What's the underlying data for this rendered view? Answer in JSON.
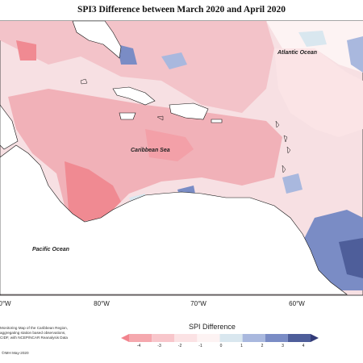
{
  "title": "SPI3 Difference between March 2020 and April 2020",
  "labels": {
    "atlantic": "Atlantic Ocean",
    "caribbean": "Caribbean Sea",
    "pacific": "Pacific Ocean"
  },
  "longitude_ticks": [
    "0°W",
    "80°W",
    "70°W",
    "60°W"
  ],
  "notes": [
    "Monitoring Map of the Caribbean Region,",
    "aggregating station based observations,",
    "CIDF, with NCEP/NCAR Reanalysis Data"
  ],
  "copyright": "©IMH May-2020",
  "legend": {
    "title": "SPI Difference",
    "ticks": [
      "-4",
      "-3",
      "-2",
      "-1",
      "0",
      "1",
      "2",
      "3",
      "4"
    ],
    "colors": [
      "#f2848e",
      "#f5a8ae",
      "#f8c6cb",
      "#fbe2e4",
      "#fdf3f3",
      "#d9e7ef",
      "#a9b8de",
      "#7a8cc5",
      "#4e5e9a",
      "#323b78"
    ]
  }
}
